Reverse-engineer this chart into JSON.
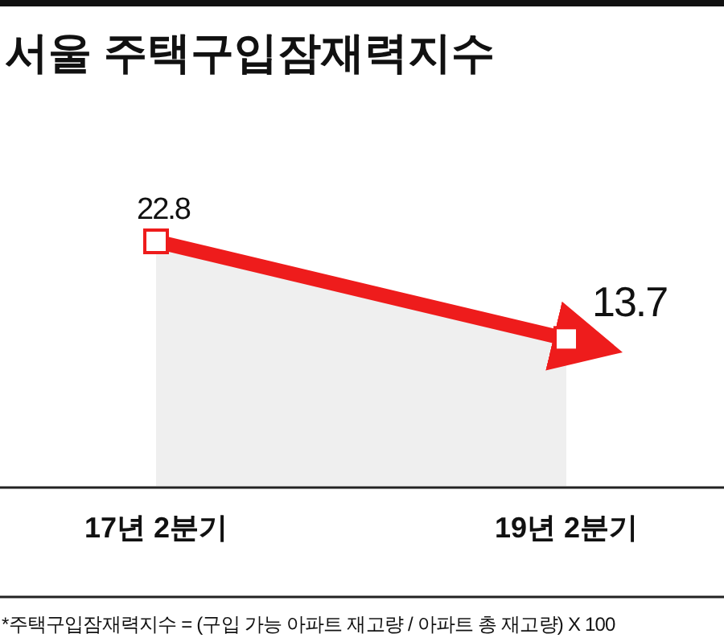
{
  "chart_data": {
    "type": "area",
    "title": "서울 주택구입잠재력지수",
    "categories": [
      "17년 2분기",
      "19년 2분기"
    ],
    "series": [
      {
        "type": "area",
        "color": "#ee1c1c",
        "values": [
          22.8,
          13.7
        ],
        "marker": "square"
      }
    ],
    "data_labels": true,
    "annotations": [
      "*주택구입잠재력지수 = (구입 가능 아파트 재고량 / 아파트 총 재고량) X 100"
    ]
  }
}
